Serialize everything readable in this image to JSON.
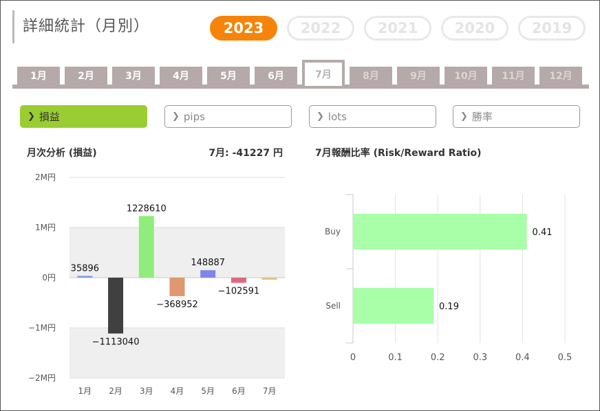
{
  "header": {
    "title": "詳細統計（月別）"
  },
  "years": [
    {
      "label": "2023",
      "active": true
    },
    {
      "label": "2022",
      "active": false
    },
    {
      "label": "2021",
      "active": false
    },
    {
      "label": "2020",
      "active": false
    },
    {
      "label": "2019",
      "active": false
    }
  ],
  "months": [
    {
      "label": "1月",
      "state": "enabled"
    },
    {
      "label": "2月",
      "state": "enabled"
    },
    {
      "label": "3月",
      "state": "enabled"
    },
    {
      "label": "4月",
      "state": "enabled"
    },
    {
      "label": "5月",
      "state": "enabled"
    },
    {
      "label": "6月",
      "state": "enabled"
    },
    {
      "label": "7月",
      "state": "active"
    },
    {
      "label": "8月",
      "state": "disabled"
    },
    {
      "label": "9月",
      "state": "disabled"
    },
    {
      "label": "10月",
      "state": "disabled"
    },
    {
      "label": "11月",
      "state": "disabled"
    },
    {
      "label": "12月",
      "state": "disabled"
    }
  ],
  "metrics": [
    {
      "label": "損益",
      "active": true
    },
    {
      "label": "pips",
      "active": false
    },
    {
      "label": "lots",
      "active": false
    },
    {
      "label": "勝率",
      "active": false
    }
  ],
  "left_panel": {
    "title": "月次分析 (損益)",
    "summary": "7月:  -41227 円"
  },
  "right_panel": {
    "title": "7月報酬比率 (Risk/Reward Ratio)"
  },
  "chart_data": [
    {
      "type": "bar",
      "title": "月次分析 (損益)",
      "categories": [
        "1月",
        "2月",
        "3月",
        "4月",
        "5月",
        "6月",
        "7月"
      ],
      "values": [
        35896,
        -1113040,
        1228610,
        -368952,
        148887,
        -102591,
        -41227
      ],
      "labels": [
        "35896",
        "-1113040",
        "1228610",
        "-368952",
        "148887",
        "-102591",
        ""
      ],
      "colors": [
        "#7fa0e6",
        "#404040",
        "#90ed7d",
        "#e09870",
        "#8085e9",
        "#e06880",
        "#e4c090"
      ],
      "yticks": [
        {
          "value": 2000000,
          "label": "2M円"
        },
        {
          "value": 1000000,
          "label": "1M円"
        },
        {
          "value": 0,
          "label": "0円"
        },
        {
          "value": -1000000,
          "label": "−1M円"
        },
        {
          "value": -2000000,
          "label": "−2M円"
        }
      ],
      "ylim": [
        -2000000,
        2000000
      ],
      "grid": true
    },
    {
      "type": "bar",
      "orientation": "horizontal",
      "title": "7月報酬比率 (Risk/Reward Ratio)",
      "categories": [
        "Buy",
        "Sell"
      ],
      "values": [
        0.41,
        0.19
      ],
      "labels": [
        "0.41",
        "0.19"
      ],
      "color": "#a8ffa8",
      "xticks": [
        0,
        0.1,
        0.2,
        0.3,
        0.4,
        0.5
      ],
      "xlim": [
        0,
        0.5
      ],
      "grid": true
    }
  ]
}
